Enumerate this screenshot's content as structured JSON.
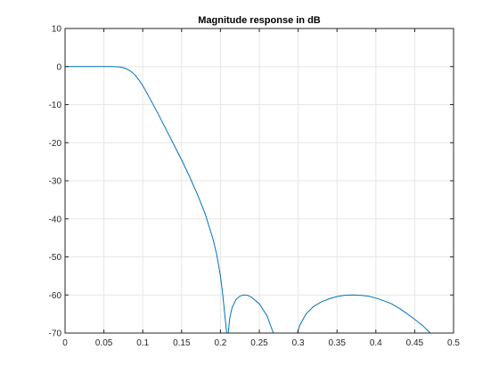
{
  "chart_data": {
    "type": "line",
    "title": "Magnitude response in dB",
    "xlabel": "",
    "ylabel": "",
    "xlim": [
      0,
      0.5
    ],
    "ylim": [
      -70,
      10
    ],
    "x_ticks": [
      0,
      0.05,
      0.1,
      0.15,
      0.2,
      0.25,
      0.3,
      0.35,
      0.4,
      0.45,
      0.5
    ],
    "x_tick_labels": [
      "0",
      "0.05",
      "0.1",
      "0.15",
      "0.2",
      "0.25",
      "0.3",
      "0.35",
      "0.4",
      "0.45",
      "0.5"
    ],
    "y_ticks": [
      10,
      0,
      -10,
      -20,
      -30,
      -40,
      -50,
      -60,
      -70
    ],
    "y_tick_labels": [
      "10",
      "0",
      "-10",
      "-20",
      "-30",
      "-40",
      "-50",
      "-60",
      "-70"
    ],
    "grid": true,
    "line_color": "#0072BD",
    "series": [
      {
        "segments": [
          [
            [
              0,
              0
            ],
            [
              0.02,
              0
            ],
            [
              0.04,
              0
            ],
            [
              0.06,
              0
            ],
            [
              0.07,
              -0.1
            ],
            [
              0.075,
              -0.3
            ],
            [
              0.08,
              -0.7
            ],
            [
              0.085,
              -1.3
            ],
            [
              0.09,
              -2.2
            ],
            [
              0.095,
              -3.5
            ],
            [
              0.1,
              -5
            ],
            [
              0.11,
              -8.7
            ],
            [
              0.12,
              -12.5
            ],
            [
              0.13,
              -16.5
            ],
            [
              0.14,
              -20.5
            ],
            [
              0.15,
              -24.5
            ],
            [
              0.16,
              -28.8
            ],
            [
              0.17,
              -33.4
            ],
            [
              0.18,
              -38.5
            ],
            [
              0.19,
              -45
            ],
            [
              0.195,
              -49.2
            ],
            [
              0.2,
              -55
            ],
            [
              0.203,
              -60
            ],
            [
              0.206,
              -66
            ],
            [
              0.208,
              -70
            ]
          ],
          [
            [
              0.21,
              -70
            ],
            [
              0.212,
              -66
            ],
            [
              0.215,
              -63.3
            ],
            [
              0.22,
              -61.2
            ],
            [
              0.225,
              -60.3
            ],
            [
              0.23,
              -60
            ],
            [
              0.235,
              -60.1
            ],
            [
              0.24,
              -60.6
            ],
            [
              0.25,
              -62.3
            ],
            [
              0.26,
              -65.5
            ],
            [
              0.268,
              -70
            ]
          ],
          [
            [
              0.299,
              -70
            ],
            [
              0.302,
              -68
            ],
            [
              0.31,
              -65
            ],
            [
              0.32,
              -63
            ],
            [
              0.33,
              -61.8
            ],
            [
              0.34,
              -61
            ],
            [
              0.35,
              -60.4
            ],
            [
              0.36,
              -60.1
            ],
            [
              0.37,
              -60
            ],
            [
              0.38,
              -60.1
            ],
            [
              0.39,
              -60.3
            ],
            [
              0.4,
              -60.8
            ],
            [
              0.41,
              -61.5
            ],
            [
              0.42,
              -62.3
            ],
            [
              0.43,
              -63.5
            ],
            [
              0.44,
              -64.9
            ],
            [
              0.45,
              -66.4
            ],
            [
              0.46,
              -68
            ],
            [
              0.47,
              -70
            ]
          ]
        ]
      }
    ]
  }
}
